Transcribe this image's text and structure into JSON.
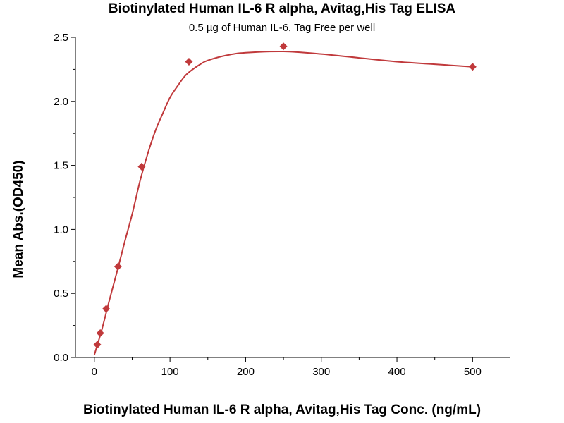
{
  "chart_data": {
    "type": "scatter",
    "title": "Biotinylated Human IL-6 R alpha, Avitag,His Tag ELISA",
    "subtitle": "0.5 µg of Human IL-6, Tag Free per well",
    "xlabel": "Biotinylated Human IL-6 R alpha, Avitag,His Tag Conc. (ng/mL)",
    "ylabel": "Mean Abs.(OD450)",
    "xlim": [
      -25,
      550
    ],
    "ylim": [
      0,
      2.5
    ],
    "xticks": [
      0,
      100,
      200,
      300,
      400,
      500
    ],
    "xtick_labels": [
      "0",
      "100",
      "200",
      "300",
      "400",
      "500"
    ],
    "yticks": [
      0.0,
      0.5,
      1.0,
      1.5,
      2.0,
      2.5
    ],
    "ytick_labels": [
      "0.0",
      "0.5",
      "1.0",
      "1.5",
      "2.0",
      "2.5"
    ],
    "grid": false,
    "series": [
      {
        "marker": "diamond",
        "color": "#c0393b",
        "x": [
          3.9,
          7.8,
          15.6,
          31.25,
          62.5,
          125,
          250,
          500
        ],
        "y": [
          0.1,
          0.19,
          0.38,
          0.71,
          1.49,
          2.31,
          2.43,
          2.27
        ]
      }
    ],
    "fit_curve": {
      "color": "#c0393b",
      "x": [
        0,
        10,
        20,
        30,
        40,
        50,
        60,
        70,
        80,
        90,
        100,
        110,
        120,
        130,
        140,
        150,
        175,
        200,
        250,
        300,
        350,
        400,
        450,
        500
      ],
      "y": [
        0.02,
        0.22,
        0.45,
        0.67,
        0.9,
        1.12,
        1.37,
        1.58,
        1.76,
        1.9,
        2.03,
        2.12,
        2.2,
        2.25,
        2.29,
        2.32,
        2.36,
        2.38,
        2.39,
        2.37,
        2.34,
        2.31,
        2.29,
        2.27
      ]
    }
  }
}
